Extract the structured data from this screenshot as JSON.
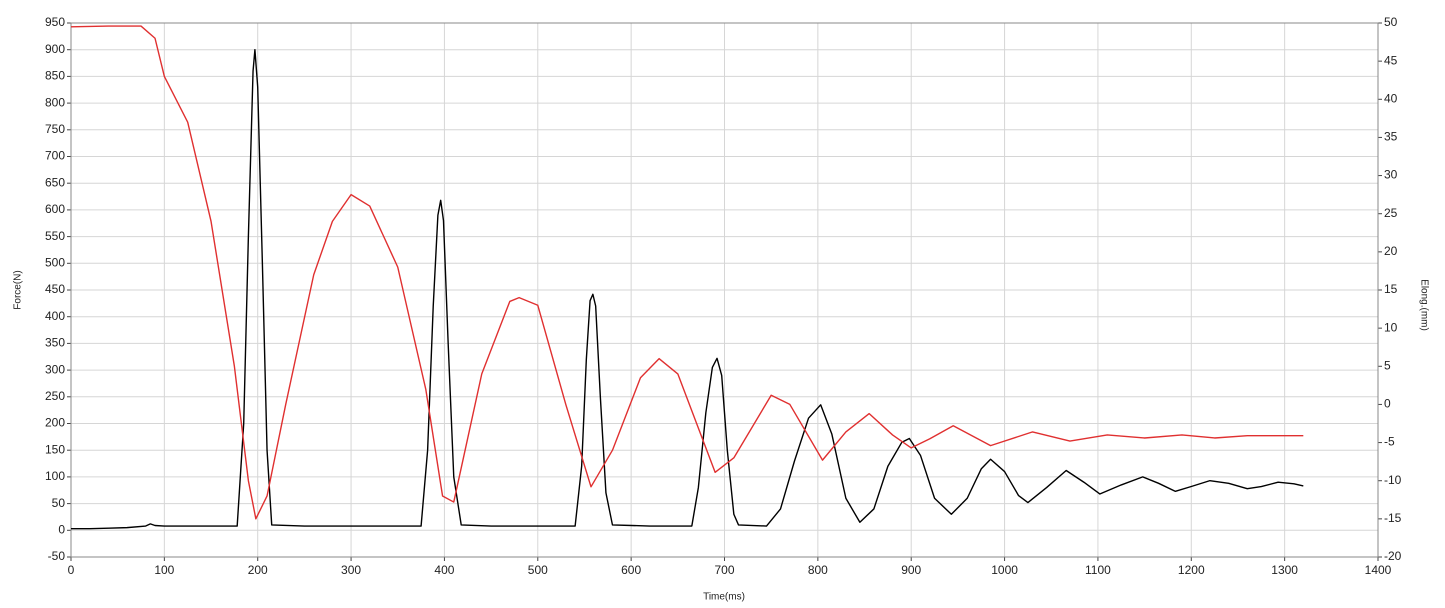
{
  "chart_data": {
    "type": "line",
    "xlabel": "Time(ms)",
    "ylabel": "Force(N)",
    "y2label": "Elong.(mm)",
    "xlim": [
      0,
      1400
    ],
    "xticks": [
      0,
      100,
      200,
      300,
      400,
      500,
      600,
      700,
      800,
      900,
      1000,
      1100,
      1200,
      1300,
      1400
    ],
    "ylim": [
      -50,
      950
    ],
    "yticks": [
      -50,
      0,
      50,
      100,
      150,
      200,
      250,
      300,
      350,
      400,
      450,
      500,
      550,
      600,
      650,
      700,
      750,
      800,
      850,
      900,
      950
    ],
    "y2lim": [
      -20,
      50
    ],
    "y2ticks": [
      -20,
      -15,
      -10,
      -5,
      0,
      5,
      10,
      15,
      20,
      25,
      30,
      35,
      40,
      45,
      50
    ],
    "grid": true,
    "series": [
      {
        "color": "#000000",
        "x": [
          0,
          20,
          40,
          60,
          80,
          85,
          90,
          100,
          120,
          150,
          178,
          185,
          190,
          195,
          197,
          200,
          205,
          210,
          215,
          250,
          300,
          350,
          375,
          382,
          388,
          393,
          396,
          399,
          404,
          410,
          418,
          450,
          500,
          540,
          547,
          552,
          556,
          559,
          562,
          567,
          573,
          580,
          620,
          665,
          672,
          680,
          687,
          692,
          697,
          703,
          710,
          715,
          745,
          760,
          775,
          790,
          803,
          815,
          830,
          845,
          860,
          875,
          890,
          898,
          910,
          925,
          943,
          960,
          975,
          985,
          1000,
          1015,
          1025,
          1045,
          1066,
          1085,
          1102,
          1125,
          1148,
          1165,
          1183,
          1200,
          1220,
          1240,
          1260,
          1275,
          1293,
          1310,
          1320
        ],
        "values": [
          3,
          3,
          4,
          5,
          8,
          12,
          9,
          8,
          8,
          8,
          8,
          200,
          550,
          860,
          900,
          830,
          500,
          150,
          10,
          8,
          8,
          8,
          8,
          150,
          420,
          590,
          618,
          580,
          350,
          100,
          10,
          8,
          8,
          8,
          120,
          320,
          430,
          442,
          420,
          250,
          70,
          10,
          8,
          8,
          80,
          220,
          305,
          322,
          290,
          150,
          30,
          10,
          8,
          40,
          130,
          210,
          235,
          180,
          60,
          15,
          40,
          120,
          165,
          172,
          140,
          60,
          30,
          60,
          115,
          133,
          110,
          65,
          52,
          80,
          112,
          90,
          68,
          85,
          100,
          88,
          73,
          82,
          93,
          88,
          78,
          82,
          90,
          87,
          83
        ]
      },
      {
        "color": "#e03030",
        "axis": "y2",
        "x": [
          0,
          40,
          75,
          90,
          100,
          125,
          150,
          175,
          190,
          198,
          210,
          230,
          260,
          280,
          300,
          320,
          350,
          380,
          398,
          410,
          440,
          470,
          480,
          500,
          530,
          557,
          580,
          610,
          630,
          650,
          690,
          710,
          750,
          770,
          805,
          830,
          855,
          880,
          900,
          920,
          945,
          985,
          1030,
          1070,
          1110,
          1150,
          1190,
          1225,
          1260,
          1320
        ],
        "values": [
          49.5,
          49.6,
          49.6,
          48,
          43,
          37,
          24,
          5,
          -10,
          -15,
          -12,
          0,
          17,
          24,
          27.5,
          26,
          18,
          2,
          -12,
          -12.8,
          4,
          13.5,
          14,
          13,
          0,
          -10.8,
          -6,
          3.5,
          6,
          4,
          -8.9,
          -7,
          1.2,
          0,
          -7.3,
          -3.6,
          -1.2,
          -4,
          -5.7,
          -4.5,
          -2.8,
          -5.4,
          -3.6,
          -4.8,
          -4,
          -4.4,
          -4,
          -4.4,
          -4.1,
          -4.1
        ]
      }
    ]
  }
}
